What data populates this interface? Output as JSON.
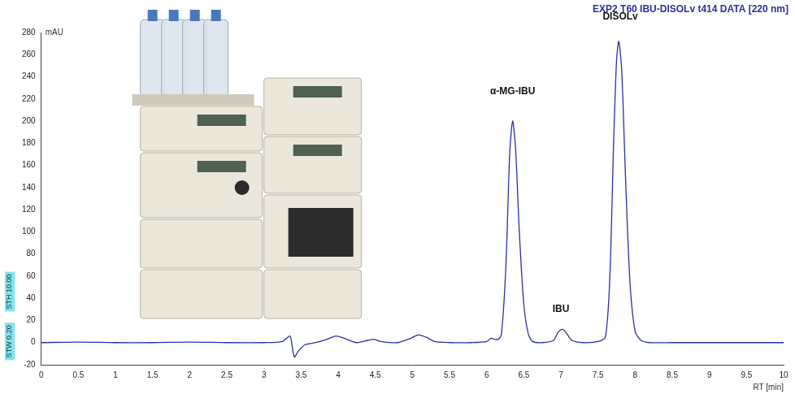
{
  "chart_data": {
    "type": "line",
    "title": "EXP2 T60 IBU-DISOLv t414 DATA [220 nm]",
    "xlabel": "RT [min]",
    "ylabel": "mAU",
    "x": [
      0,
      0.5,
      1,
      1.5,
      2,
      2.5,
      3,
      3.25,
      3.35,
      3.38,
      3.41,
      3.46,
      3.55,
      3.7,
      3.85,
      3.97,
      4.08,
      4.25,
      4.4,
      4.48,
      4.58,
      4.8,
      4.98,
      5.08,
      5.18,
      5.3,
      5.5,
      5.8,
      6.0,
      6.06,
      6.1,
      6.16,
      6.2,
      6.26,
      6.31,
      6.35,
      6.39,
      6.44,
      6.5,
      6.56,
      6.62,
      6.75,
      6.9,
      6.96,
      7.02,
      7.08,
      7.15,
      7.3,
      7.5,
      7.6,
      7.66,
      7.71,
      7.75,
      7.78,
      7.82,
      7.87,
      7.93,
      8.0,
      8.08,
      8.2,
      8.5,
      9.0,
      9.5,
      10.0
    ],
    "series": [
      {
        "name": "EXP2 T60 IBU-DISOLv t414 DATA [220 nm]",
        "color": "#2b30a3",
        "values": [
          0,
          0.5,
          0,
          0,
          0.5,
          0,
          0,
          1,
          6,
          -3,
          -13,
          -8,
          -2,
          0,
          3,
          6,
          4,
          0,
          2,
          3,
          1,
          0,
          4,
          7,
          5,
          1,
          0,
          0,
          1,
          4,
          3,
          3,
          8,
          70,
          170,
          200,
          175,
          100,
          35,
          8,
          1,
          0,
          2,
          9,
          12,
          8,
          2,
          0,
          1,
          5,
          60,
          180,
          255,
          272,
          245,
          150,
          55,
          10,
          2,
          0,
          0,
          0,
          0,
          0
        ]
      }
    ],
    "xlim": [
      0,
      10
    ],
    "xticks": [
      0,
      0.5,
      1,
      1.5,
      2,
      2.5,
      3,
      3.5,
      4,
      4.5,
      5,
      5.5,
      6,
      6.5,
      7,
      7.5,
      8,
      8.5,
      9,
      9.5,
      10
    ],
    "ylim": [
      -20,
      280
    ],
    "yticks": [
      -20,
      0,
      20,
      40,
      60,
      80,
      100,
      120,
      140,
      160,
      180,
      200,
      220,
      240,
      260,
      280
    ],
    "grid": false,
    "annotations": [
      {
        "text": "α-MG-IBU",
        "x": 6.35,
        "y": 222
      },
      {
        "text": "IBU",
        "x": 7.0,
        "y": 26
      },
      {
        "text": "DISOLv",
        "x": 7.8,
        "y": 290
      }
    ],
    "side_labels": [
      "STH 10.00",
      "STW 0.20"
    ]
  }
}
